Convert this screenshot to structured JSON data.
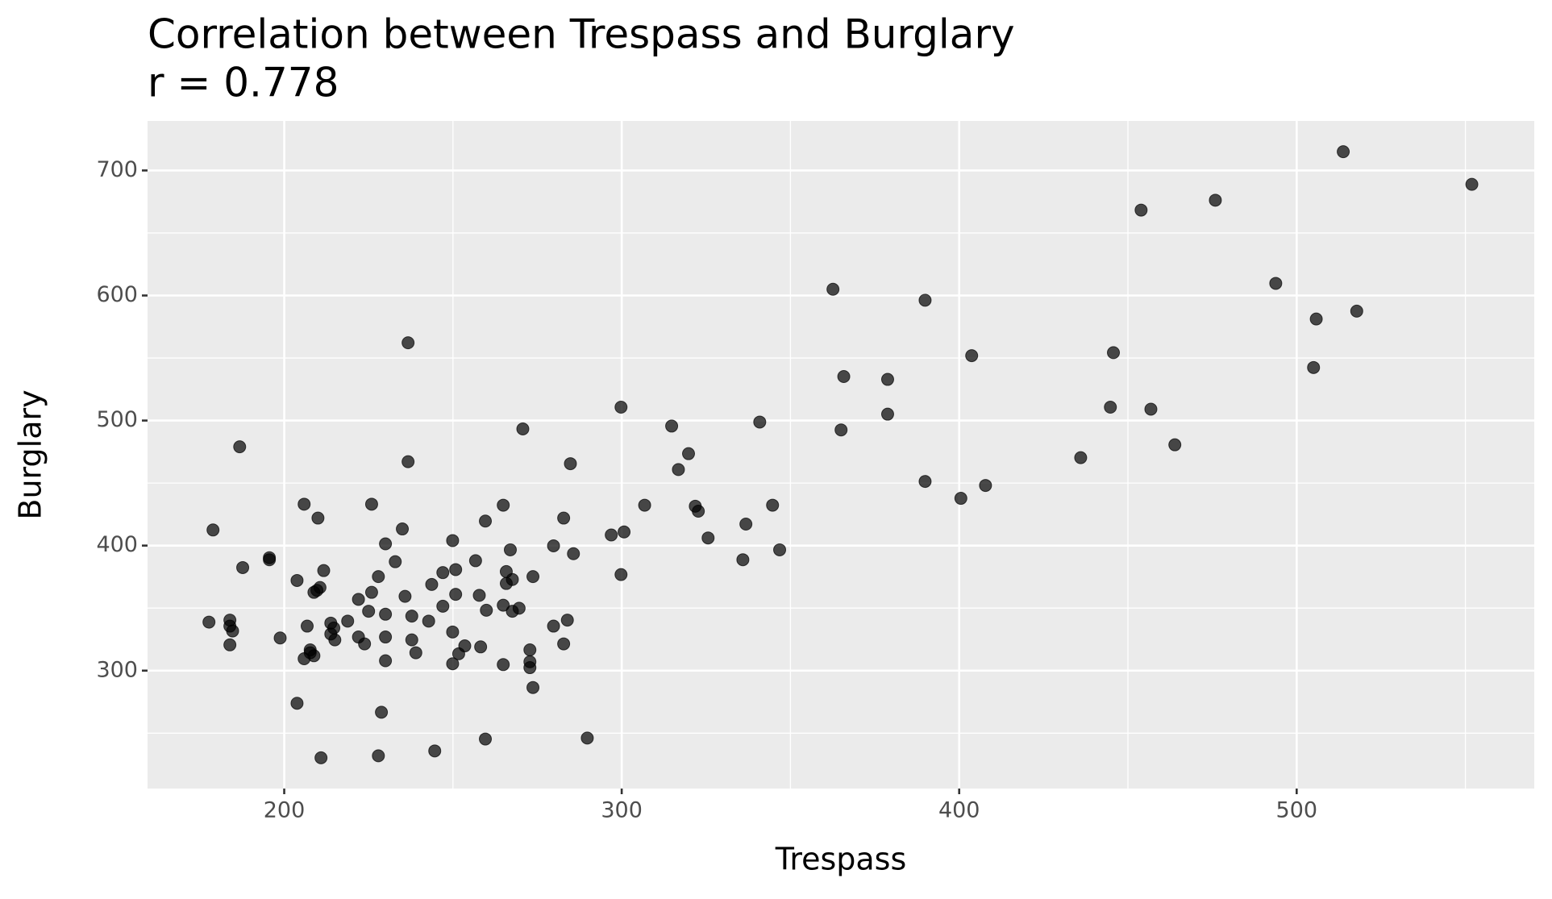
{
  "chart_data": {
    "type": "scatter",
    "title": "Correlation between Trespass and Burglary",
    "subtitle": "r = 0.778",
    "x_label": "Trespass",
    "y_label": "Burglary",
    "color": "#000000",
    "grid": true,
    "xlim": [
      159.5,
      570.4
    ],
    "ylim": [
      205.7,
      739.6
    ],
    "xticks": [
      200,
      300,
      400,
      500
    ],
    "yticks": [
      300,
      400,
      500,
      600,
      700
    ],
    "x_minor_ticks": [
      250,
      350,
      450,
      550
    ],
    "y_minor_ticks": [
      250,
      350,
      450,
      550,
      650
    ],
    "x": [
      551.9,
      513.8,
      453.9,
      475.9,
      493.8,
      505.8,
      517.8,
      505.0,
      445.7,
      444.8,
      456.8,
      463.9,
      436.0,
      403.7,
      407.8,
      400.5,
      389.9,
      389.9,
      378.8,
      378.8,
      365.8,
      365.0,
      362.6,
      340.9,
      344.7,
      346.8,
      336.8,
      335.9,
      325.6,
      322.7,
      321.8,
      319.8,
      316.8,
      314.8,
      306.8,
      299.8,
      300.7,
      296.9,
      299.8,
      270.7,
      284.8,
      282.8,
      279.8,
      285.7,
      283.9,
      279.8,
      282.8,
      273.7,
      289.8,
      273.7,
      272.8,
      272.8,
      272.8,
      264.9,
      269.6,
      267.6,
      264.9,
      264.9,
      267.0,
      267.6,
      265.8,
      265.8,
      259.6,
      259.9,
      257.8,
      256.7,
      258.2,
      259.6,
      249.9,
      250.8,
      250.8,
      247.0,
      247.0,
      249.9,
      253.5,
      251.7,
      249.9,
      243.7,
      242.8,
      239.0,
      237.8,
      237.8,
      235.8,
      236.7,
      236.7,
      235.0,
      232.9,
      230.0,
      227.9,
      225.9,
      225.0,
      230.0,
      230.0,
      230.0,
      223.8,
      222.0,
      222.0,
      225.9,
      228.8,
      227.9,
      218.8,
      215.0,
      214.7,
      213.8,
      213.8,
      211.7,
      210.6,
      209.7,
      208.8,
      210.0,
      205.9,
      203.8,
      206.8,
      208.8,
      207.7,
      207.7,
      205.9,
      203.8,
      210.9,
      198.8,
      195.6,
      195.6,
      187.7,
      186.8,
      178.9,
      177.7,
      183.9,
      184.7,
      183.9,
      183.9,
      244.6
    ],
    "values": [
      688.9,
      715.0,
      668.3,
      676.2,
      609.7,
      581.2,
      587.5,
      542.4,
      554.3,
      510.7,
      509.1,
      480.6,
      470.3,
      551.9,
      448.1,
      437.8,
      451.3,
      596.2,
      532.9,
      505.1,
      535.2,
      492.5,
      605.0,
      498.8,
      432.3,
      396.6,
      417.2,
      388.7,
      406.1,
      427.5,
      431.5,
      473.5,
      460.8,
      495.6,
      432.3,
      510.7,
      410.9,
      408.5,
      376.8,
      493.3,
      465.5,
      422.0,
      399.8,
      393.5,
      340.4,
      335.6,
      321.4,
      375.2,
      246.1,
      286.5,
      307.1,
      302.4,
      316.6,
      304.8,
      349.9,
      347.5,
      352.3,
      432.3,
      396.6,
      372.9,
      379.2,
      369.7,
      419.6,
      348.3,
      360.2,
      387.9,
      319.0,
      245.3,
      404.0,
      380.8,
      361.0,
      378.4,
      351.5,
      330.9,
      319.8,
      313.5,
      305.5,
      368.9,
      339.6,
      314.3,
      343.6,
      324.6,
      359.4,
      562.2,
      467.1,
      413.3,
      387.1,
      401.4,
      375.2,
      362.6,
      347.5,
      345.1,
      326.9,
      307.9,
      321.4,
      326.9,
      357.0,
      433.1,
      266.7,
      231.9,
      339.6,
      324.6,
      334.1,
      338.0,
      329.3,
      380.0,
      366.5,
      364.2,
      362.6,
      422.0,
      433.1,
      372.1,
      335.6,
      311.9,
      316.6,
      314.3,
      309.5,
      273.9,
      230.3,
      326.1,
      388.7,
      390.3,
      382.4,
      479.0,
      412.5,
      338.8,
      340.4,
      331.7,
      335.6,
      320.6,
      235.8
    ]
  }
}
